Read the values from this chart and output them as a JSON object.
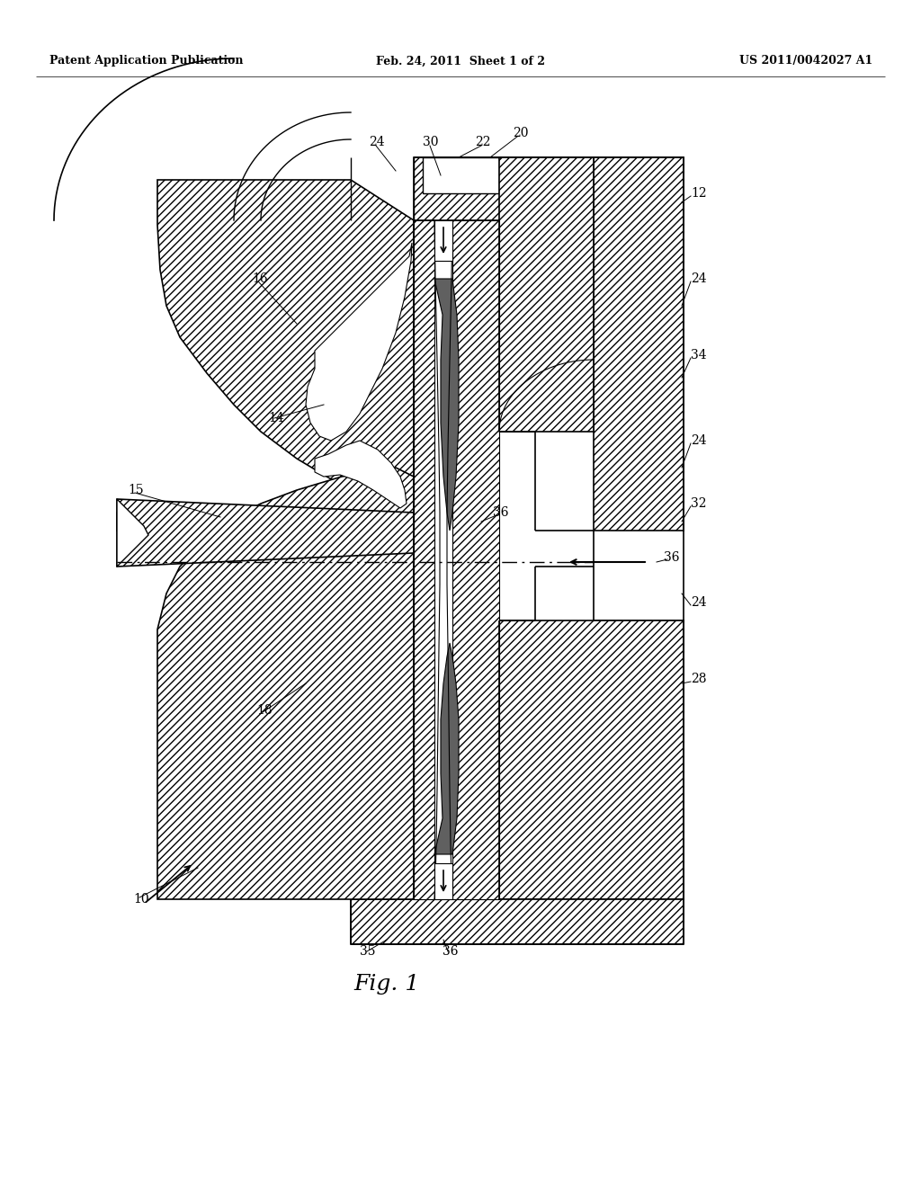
{
  "header_left": "Patent Application Publication",
  "header_center": "Feb. 24, 2011  Sheet 1 of 2",
  "header_right": "US 2011/0042027 A1",
  "figure_label": "Fig. 1",
  "bg": "#ffffff",
  "lc": "#000000"
}
